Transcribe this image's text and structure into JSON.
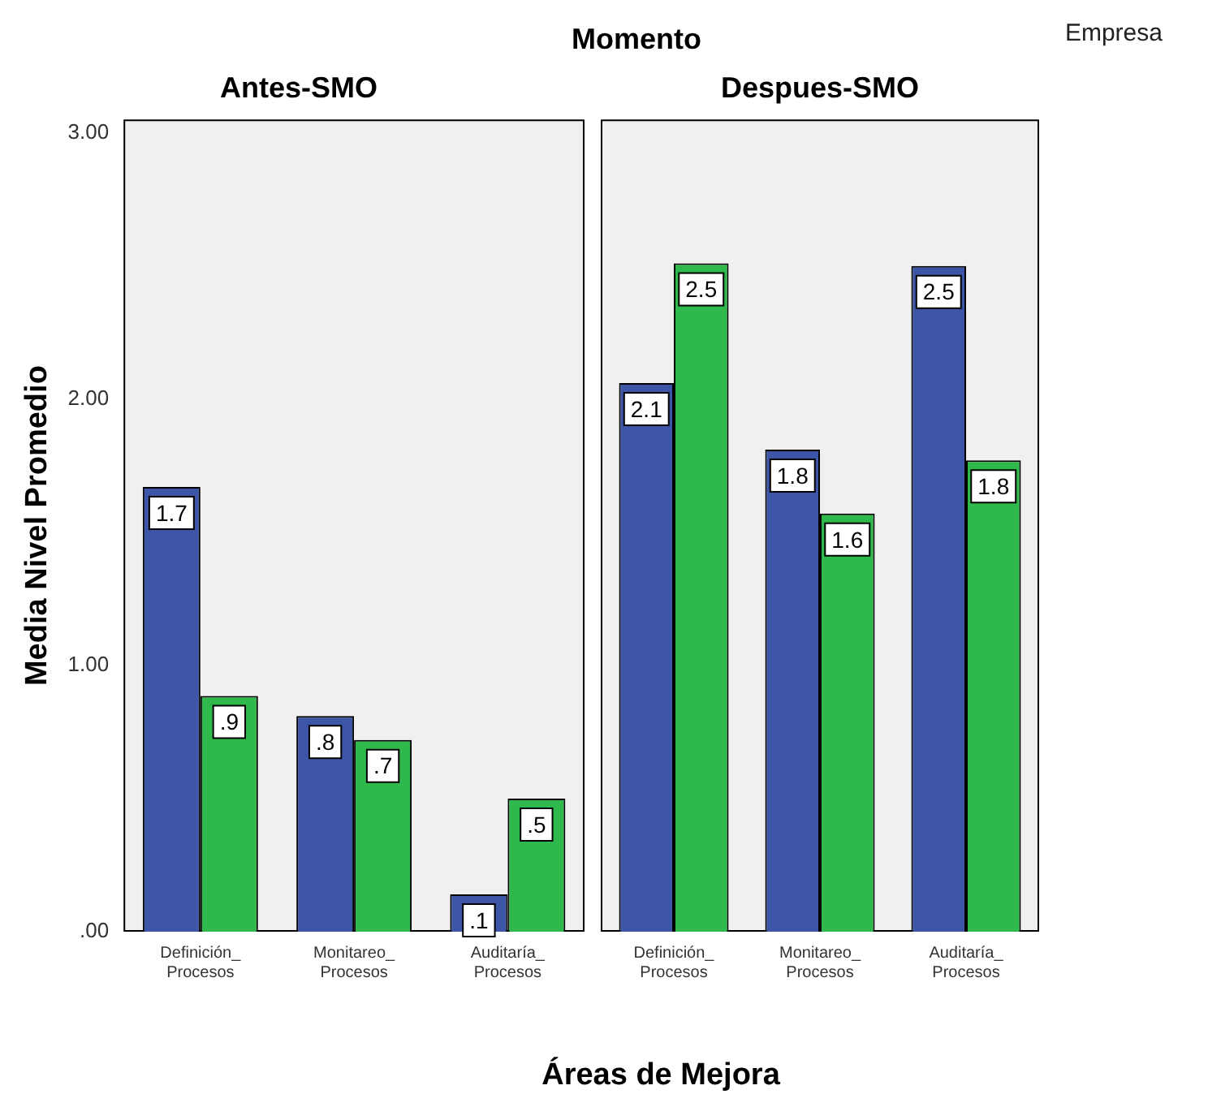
{
  "chart_data": [
    {
      "type": "bar",
      "title": "Antes-SMO",
      "ylabel": "Media Nivel Promedio",
      "annotations": [
        "Momento"
      ],
      "categories": [
        "Definición_Procesos",
        "Monitareo_Procesos",
        "Auditaría_Procesos"
      ],
      "series": [
        {
          "color": "#3d55a6",
          "values": [
            1.67,
            0.81,
            0.14
          ],
          "value_labels": [
            "1.7",
            ".8",
            ".1"
          ]
        },
        {
          "color": "#2fb84b",
          "values": [
            0.885,
            0.72,
            0.5
          ],
          "value_labels": [
            ".9",
            ".7",
            ".5"
          ]
        }
      ],
      "ylim": [
        0,
        3.05
      ],
      "yticks": [
        {
          "value": 0,
          "label": ".00"
        },
        {
          "value": 1,
          "label": "1.00"
        },
        {
          "value": 2,
          "label": "2.00"
        },
        {
          "value": 3,
          "label": "3.00"
        }
      ],
      "grid": false
    },
    {
      "type": "bar",
      "title": "Despues-SMO",
      "xlabel": "Áreas de Mejora",
      "annotations": [
        "Empresa"
      ],
      "categories": [
        "Definición_Procesos",
        "Monitareo_Procesos",
        "Auditaría_Procesos"
      ],
      "series": [
        {
          "color": "#3d55a6",
          "values": [
            2.06,
            1.81,
            2.5
          ],
          "value_labels": [
            "2.1",
            "1.8",
            "2.5"
          ]
        },
        {
          "color": "#2fb84b",
          "values": [
            2.51,
            1.57,
            1.77
          ],
          "value_labels": [
            "2.5",
            "1.6",
            "1.8"
          ]
        }
      ],
      "ylim": [
        0,
        3.05
      ],
      "grid": false,
      "tick_labels": "x"
    }
  ]
}
